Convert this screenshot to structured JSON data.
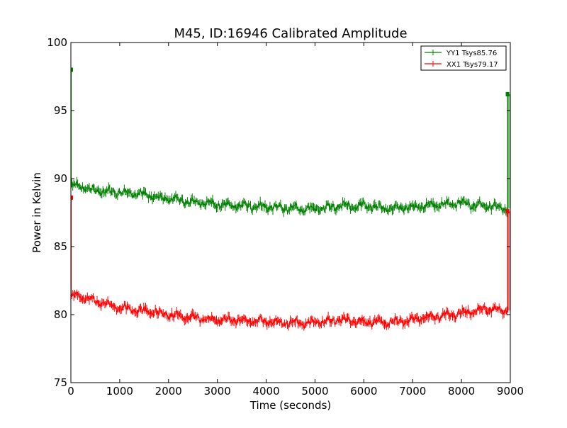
{
  "chart_data": {
    "type": "line",
    "title": "M45, ID:16946 Calibrated Amplitude",
    "xlabel": "Time (seconds)",
    "ylabel": "Power in Kelvin",
    "xlim": [
      0,
      9000
    ],
    "ylim": [
      75,
      100
    ],
    "xticks": [
      0,
      1000,
      2000,
      3000,
      4000,
      5000,
      6000,
      7000,
      8000,
      9000
    ],
    "yticks": [
      75,
      80,
      85,
      90,
      95,
      100
    ],
    "grid": false,
    "legend_position": "top-right",
    "series": [
      {
        "name": "YY1 Tsys85.76",
        "color": "#008000",
        "x": [
          0,
          100,
          500,
          1000,
          1500,
          2000,
          2500,
          3000,
          3500,
          4000,
          4500,
          5000,
          5500,
          6000,
          6500,
          7000,
          7500,
          8000,
          8500,
          8950
        ],
        "y": [
          89.3,
          89.5,
          89.1,
          89.0,
          88.8,
          88.5,
          88.3,
          88.1,
          88.0,
          87.9,
          87.8,
          87.8,
          88.0,
          88.0,
          87.8,
          87.9,
          88.1,
          88.2,
          88.0,
          87.8
        ],
        "noise": 0.25,
        "start_spike": 98.0,
        "end_spike": 96.2
      },
      {
        "name": "XX1 Tsys79.17",
        "color": "#ff0000",
        "x": [
          0,
          100,
          500,
          1000,
          1500,
          2000,
          2500,
          3000,
          3500,
          4000,
          4500,
          5000,
          5500,
          6000,
          6500,
          7000,
          7500,
          8000,
          8500,
          8950
        ],
        "y": [
          81.3,
          81.4,
          81.0,
          80.5,
          80.3,
          80.0,
          79.8,
          79.6,
          79.6,
          79.5,
          79.4,
          79.4,
          79.6,
          79.5,
          79.4,
          79.6,
          79.9,
          80.1,
          80.4,
          80.3
        ],
        "noise": 0.25,
        "start_spike": 88.6,
        "end_spike": 87.6
      }
    ]
  }
}
